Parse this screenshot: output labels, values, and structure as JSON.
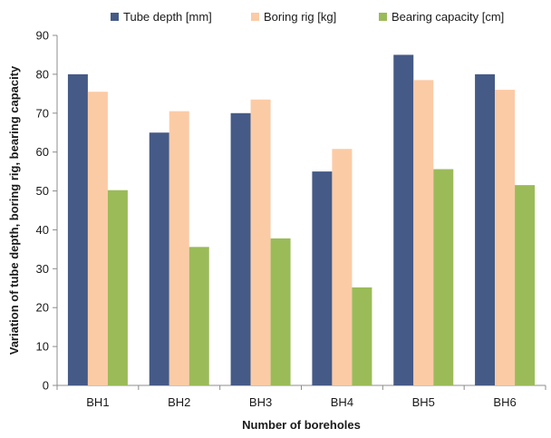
{
  "chart_data": {
    "type": "bar",
    "categories": [
      "BH1",
      "BH2",
      "BH3",
      "BH4",
      "BH5",
      "BH6"
    ],
    "series": [
      {
        "name": "Tube depth [mm]",
        "color": "#455a86",
        "values": [
          80,
          65,
          70,
          55,
          85,
          80
        ]
      },
      {
        "name": "Boring rig [kg]",
        "color": "#fbcba6",
        "values": [
          75.5,
          70.5,
          73.5,
          60.8,
          78.5,
          76
        ]
      },
      {
        "name": "Bearing capacity [cm]",
        "color": "#9bbb59",
        "values": [
          50.2,
          35.6,
          37.8,
          25.2,
          55.6,
          51.5
        ]
      }
    ],
    "xlabel": "Number of boreholes",
    "ylabel": "Variation of tube depth, boring rig, bearing capacity",
    "ylim": [
      0,
      90
    ],
    "yticks": [
      0,
      10,
      20,
      30,
      40,
      50,
      60,
      70,
      80,
      90
    ],
    "grid": false,
    "legend_position": "top"
  }
}
